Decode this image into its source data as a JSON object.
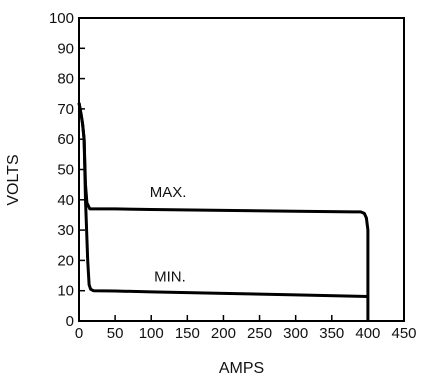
{
  "chart_data": {
    "type": "line",
    "title": "",
    "xlabel": "AMPS",
    "ylabel": "VOLTS",
    "xlim": [
      0,
      450
    ],
    "ylim": [
      0,
      100
    ],
    "xticks": [
      0,
      50,
      100,
      150,
      200,
      250,
      300,
      350,
      400,
      450
    ],
    "yticks": [
      0,
      10,
      20,
      30,
      40,
      50,
      60,
      70,
      80,
      90,
      100
    ],
    "grid": false,
    "legend": "none",
    "line_color": "#000000",
    "series": [
      {
        "name": "MAX.",
        "points": [
          [
            0,
            72
          ],
          [
            3,
            68
          ],
          [
            5,
            65
          ],
          [
            7,
            60
          ],
          [
            9,
            45
          ],
          [
            11,
            39
          ],
          [
            15,
            37
          ],
          [
            50,
            37
          ],
          [
            100,
            36.8
          ],
          [
            200,
            36.5
          ],
          [
            300,
            36.2
          ],
          [
            380,
            36
          ],
          [
            390,
            36
          ],
          [
            395,
            35.5
          ],
          [
            398,
            34
          ],
          [
            400,
            30
          ],
          [
            400,
            0
          ]
        ]
      },
      {
        "name": "MIN.",
        "points": [
          [
            0,
            72
          ],
          [
            3,
            68
          ],
          [
            5,
            65
          ],
          [
            7,
            60
          ],
          [
            9,
            40
          ],
          [
            12,
            20
          ],
          [
            14,
            12
          ],
          [
            16,
            10.5
          ],
          [
            20,
            10
          ],
          [
            50,
            9.9
          ],
          [
            100,
            9.6
          ],
          [
            200,
            9.1
          ],
          [
            300,
            8.6
          ],
          [
            400,
            8.1
          ]
        ]
      }
    ],
    "annotations": [
      {
        "text": "MAX.",
        "x": 98,
        "y": 41
      },
      {
        "text": "MIN.",
        "x": 104,
        "y": 13
      }
    ]
  }
}
